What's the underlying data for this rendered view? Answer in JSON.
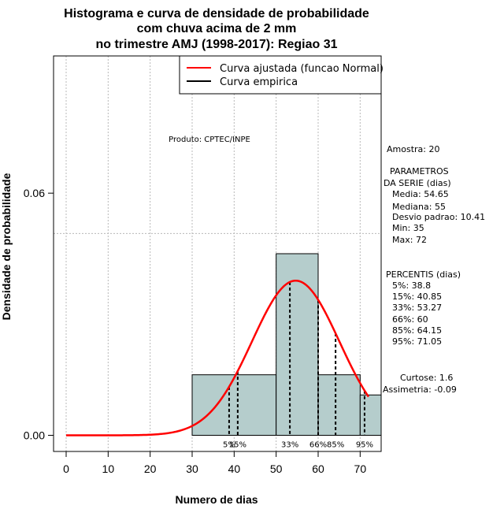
{
  "colors": {
    "bar_fill": "#b5cdcc",
    "curve": "#ff0000",
    "grid": "#b8b8b8",
    "axis": "#000000"
  },
  "chart_data": {
    "type": "histogram",
    "title_lines": [
      "Histograma e curva de densidade de probabilidade",
      "com chuva acima de 2 mm",
      "no trimestre AMJ (1998-2017): Regiao 31"
    ],
    "xlabel": "Numero de dias",
    "ylabel": "Densidade de probabilidade",
    "xlim": [
      -3,
      75
    ],
    "ylim": [
      -0.004,
      0.094
    ],
    "x_ticks": [
      0,
      10,
      20,
      30,
      40,
      50,
      60,
      70
    ],
    "y_ticks": [
      0.0,
      0.06
    ],
    "y_tick_labels": [
      "0.00",
      "0.06"
    ],
    "x_grid": [
      0,
      10,
      20,
      30,
      40,
      50,
      60,
      70
    ],
    "y_grid": [
      0.05
    ],
    "bins": [
      {
        "x0": 30,
        "x1": 50,
        "density": 0.015
      },
      {
        "x0": 50,
        "x1": 60,
        "density": 0.045
      },
      {
        "x0": 60,
        "x1": 70,
        "density": 0.015
      },
      {
        "x0": 70,
        "x1": 75,
        "density": 0.01
      }
    ],
    "normal_fit": {
      "mean": 54.65,
      "sd": 10.41,
      "x_from": 0,
      "x_to": 72
    },
    "percentiles": [
      {
        "label": "5%",
        "value": 38.8
      },
      {
        "label": "15%",
        "value": 40.85
      },
      {
        "label": "33%",
        "value": 53.27
      },
      {
        "label": "66%",
        "value": 60
      },
      {
        "label": "85%",
        "value": 64.15
      },
      {
        "label": "95%",
        "value": 71.05
      }
    ],
    "legend": [
      {
        "label": "Curva ajustada (funcao Normal)",
        "color": "#ff0000"
      },
      {
        "label": "Curva empirica",
        "color": "#000000"
      }
    ],
    "product_note": "Produto: CPTEC/INPE"
  },
  "stats_panel": {
    "amostra": "Amostra: 20",
    "parametros_title": "PARAMETROS",
    "da_serie": "DA SERIE (dias)",
    "media": "Media: 54.65",
    "mediana": "Mediana: 55",
    "desvio": "Desvio padrao: 10.41",
    "min": "Min: 35",
    "max": "Max: 72",
    "percentis_title": "PERCENTIS (dias)",
    "p5": "5%: 38.8",
    "p15": "15%: 40.85",
    "p33": "33%: 53.27",
    "p66": "66%: 60",
    "p85": "85%: 64.15",
    "p95": "95%: 71.05",
    "curtose": "Curtose: 1.6",
    "assimetria": "Assimetria: -0.09"
  }
}
